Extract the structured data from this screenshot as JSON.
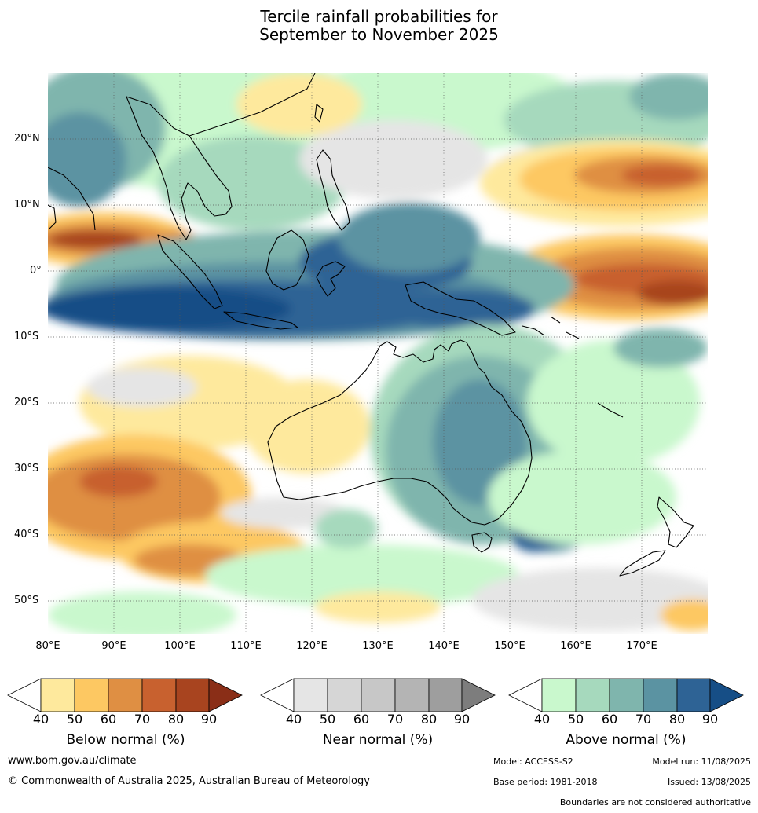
{
  "title": {
    "line1": "Tercile rainfall probabilities for",
    "line2": "September to November 2025"
  },
  "map": {
    "lat_ticks": [
      "20°N",
      "10°N",
      "0°",
      "10°S",
      "20°S",
      "30°S",
      "40°S",
      "50°S"
    ],
    "lon_ticks": [
      "80°E",
      "90°E",
      "100°E",
      "110°E",
      "120°E",
      "130°E",
      "140°E",
      "150°E",
      "160°E",
      "170°E"
    ],
    "ocean_color": "#ffffff",
    "coastline_color": "#000000",
    "gridline_style": "dotted"
  },
  "legends": {
    "below": {
      "label": "Below normal (%)",
      "ticks": [
        "40",
        "50",
        "60",
        "70",
        "80",
        "90"
      ],
      "colors": [
        "#ffffff",
        "#fee99d",
        "#fdc862",
        "#df8f43",
        "#c8612f",
        "#a8441f",
        "#8a2e17"
      ]
    },
    "near": {
      "label": "Near normal (%)",
      "ticks": [
        "40",
        "50",
        "60",
        "70",
        "80",
        "90"
      ],
      "colors": [
        "#ffffff",
        "#e5e5e5",
        "#d6d6d6",
        "#c7c7c7",
        "#b4b4b4",
        "#9e9e9e",
        "#7d7d7d"
      ]
    },
    "above": {
      "label": "Above normal (%)",
      "ticks": [
        "40",
        "50",
        "60",
        "70",
        "80",
        "90"
      ],
      "colors": [
        "#ffffff",
        "#c9f8cd",
        "#a6d9bd",
        "#7fb5ad",
        "#5b93a2",
        "#2e6395",
        "#164e86"
      ]
    }
  },
  "footer": {
    "website": "www.bom.gov.au/climate",
    "copyright": "© Commonwealth of Australia 2025, Australian Bureau of Meteorology",
    "model": "Model: ACCESS-S2",
    "model_run": "Model run: 11/08/2025",
    "base_period": "Base period: 1981-2018",
    "issued": "Issued: 13/08/2025",
    "disclaimer": "Boundaries are not considered authoritative"
  }
}
